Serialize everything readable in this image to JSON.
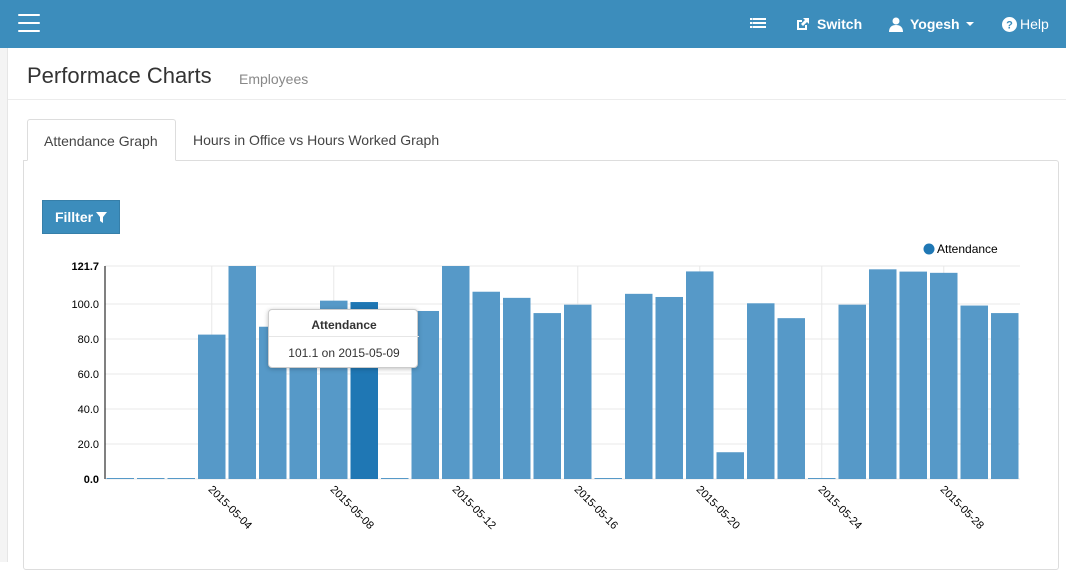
{
  "topbar": {
    "switch_label": "Switch",
    "user_label": "Yogesh",
    "help_label": "Help",
    "icons": [
      "menu-icon",
      "list-icon",
      "external-link-icon",
      "user-icon",
      "question-icon"
    ]
  },
  "header": {
    "title": "Performace Charts",
    "subtitle": "Employees"
  },
  "tabs": [
    {
      "label": "Attendance Graph",
      "active": true
    },
    {
      "label": "Hours in Office vs Hours Worked Graph",
      "active": false
    }
  ],
  "filter": {
    "label": "Fillter",
    "icon": "filter-icon"
  },
  "tooltip": {
    "title": "Attendance",
    "text": "101.1 on 2015-05-09"
  },
  "chart_data": {
    "type": "bar",
    "series": [
      {
        "name": "Attendance",
        "color": "#5699c8",
        "highlight_color": "#1f77b4",
        "x": [
          "2015-05-01",
          "2015-05-02",
          "2015-05-03",
          "2015-05-04",
          "2015-05-05",
          "2015-05-06",
          "2015-05-07",
          "2015-05-08",
          "2015-05-09",
          "2015-05-10",
          "2015-05-11",
          "2015-05-12",
          "2015-05-13",
          "2015-05-14",
          "2015-05-15",
          "2015-05-16",
          "2015-05-17",
          "2015-05-18",
          "2015-05-19",
          "2015-05-20",
          "2015-05-21",
          "2015-05-22",
          "2015-05-23",
          "2015-05-24",
          "2015-05-25",
          "2015-05-26",
          "2015-05-27",
          "2015-05-28",
          "2015-05-29",
          "2015-05-30"
        ],
        "values": [
          0.5,
          0.5,
          0.5,
          82.5,
          121.7,
          87.0,
          80.0,
          101.9,
          101.1,
          0.5,
          96.0,
          121.7,
          107.0,
          103.5,
          94.8,
          99.6,
          0.5,
          105.8,
          104.0,
          118.6,
          15.3,
          100.4,
          91.9,
          0.5,
          99.6,
          119.8,
          118.5,
          117.8,
          99.1,
          94.8
        ]
      }
    ],
    "highlight_index": 8,
    "yticks": [
      "0.0",
      "20.0",
      "40.0",
      "60.0",
      "80.0",
      "100.0",
      "121.7"
    ],
    "ytick_values": [
      0,
      20,
      40,
      60,
      80,
      100,
      121.7
    ],
    "xtick_labels": [
      "2015-05-04",
      "2015-05-08",
      "2015-05-12",
      "2015-05-16",
      "2015-05-20",
      "2015-05-24",
      "2015-05-28"
    ],
    "xtick_indices": [
      3,
      7,
      11,
      15,
      19,
      23,
      27
    ],
    "ylim": [
      0,
      121.7
    ],
    "legend": "top-right",
    "grid": true
  }
}
